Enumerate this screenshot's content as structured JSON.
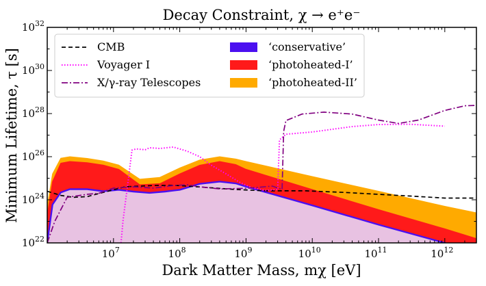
{
  "chart_data": {
    "type": "line",
    "title": "Decay Constraint,  χ → e⁺e⁻",
    "xlabel": "Dark Matter Mass, mχ [eV]",
    "ylabel": "Minimum Lifetime, τ [s]",
    "x_scale": "log",
    "y_scale": "log",
    "xlim": [
      1000000.0,
      3000000000000.0
    ],
    "ylim": [
      1e+22,
      1e+32
    ],
    "grid": false,
    "legend_position": "top-left",
    "x_ticks": [
      {
        "value": 10000000.0,
        "label": "10",
        "exp": "7"
      },
      {
        "value": 100000000.0,
        "label": "10",
        "exp": "8"
      },
      {
        "value": 1000000000.0,
        "label": "10",
        "exp": "9"
      },
      {
        "value": 10000000000.0,
        "label": "10",
        "exp": "10"
      },
      {
        "value": 100000000000.0,
        "label": "10",
        "exp": "11"
      },
      {
        "value": 1000000000000.0,
        "label": "10",
        "exp": "12"
      }
    ],
    "y_ticks": [
      {
        "value": 1e+22,
        "label": "10",
        "exp": "22"
      },
      {
        "value": 1e+24,
        "label": "10",
        "exp": "24"
      },
      {
        "value": 1e+26,
        "label": "10",
        "exp": "26"
      },
      {
        "value": 1e+28,
        "label": "10",
        "exp": "28"
      },
      {
        "value": 1e+30,
        "label": "10",
        "exp": "30"
      },
      {
        "value": 1e+32,
        "label": "10",
        "exp": "32"
      }
    ],
    "series": [
      {
        "name": "CMB",
        "style": "dashed",
        "color": "#000000",
        "x": [
          1000000.0,
          1600000.0,
          2500000.0,
          4000000.0,
          7000000.0,
          15000000.0,
          40000000.0,
          80000000.0,
          150000000.0,
          300000000.0,
          700000000.0,
          2000000000.0,
          8000000000.0,
          30000000000.0,
          100000000000.0,
          300000000000.0,
          1000000000000.0,
          3000000000000.0
        ],
        "y": [
          2.5e+24,
          1.6e+24,
          1.3e+24,
          1.4e+24,
          2.2e+24,
          4e+24,
          4.6e+24,
          4.7e+24,
          4.2e+24,
          3.6e+24,
          3e+24,
          2.6e+24,
          2.6e+24,
          2.2e+24,
          1.8e+24,
          1.5e+24,
          1.2e+24,
          1.2e+24
        ]
      },
      {
        "name": "Voyager I",
        "style": "dotted",
        "color": "#ff00ff",
        "x": [
          13000000.0,
          14000000.0,
          16000000.0,
          19000000.0,
          22000000.0,
          30000000.0,
          35000000.0,
          50000000.0,
          80000000.0,
          130000000.0,
          200000000.0,
          300000000.0,
          500000000.0,
          800000000.0,
          1200000000.0,
          2000000000.0,
          3000000000.0,
          3200000000.0,
          4000000000.0,
          10000000000.0,
          40000000000.0,
          100000000000.0,
          300000000000.0,
          1000000000000.0
        ],
        "y": [
          1e+22,
          1.2e+23,
          3e+24,
          2e+26,
          2.3e+26,
          2.1e+26,
          2.6e+26,
          2.4e+26,
          2.8e+26,
          1.8e+26,
          1e+26,
          4e+25,
          1.6e+25,
          6.5e+24,
          3.7e+24,
          2.7e+24,
          3e+24,
          6e+26,
          1.1e+27,
          1.4e+27,
          2.5e+27,
          3.1e+27,
          3.2e+27,
          2.6e+27
        ]
      },
      {
        "name": "X/γ-ray Telescopes",
        "style": "dashdot",
        "color": "#800080",
        "x": [
          1000000.0,
          1300000.0,
          2000000.0,
          4000000.0,
          6000000.0,
          10000000.0,
          20000000.0,
          40000000.0,
          80000000.0,
          130000000.0,
          200000000.0,
          400000000.0,
          1000000000.0,
          2500000000.0,
          3500000000.0,
          3700000000.0,
          4000000000.0,
          7000000000.0,
          15000000000.0,
          40000000000.0,
          100000000000.0,
          200000000000.0,
          400000000000.0,
          1000000000000.0,
          2000000000000.0,
          3000000000000.0
        ],
        "y": [
          1e+22,
          1e+23,
          1.3e+24,
          1.8e+24,
          2e+24,
          3.5e+24,
          4e+24,
          3.5e+24,
          4.6e+24,
          5e+24,
          4e+24,
          3.2e+24,
          3.4e+24,
          4.3e+24,
          3e+24,
          1.5e+27,
          4.7e+27,
          9.5e+27,
          1.17e+28,
          9.5e+27,
          5e+27,
          3.5e+27,
          5e+27,
          1.4e+28,
          2.3e+28,
          2.4e+28
        ]
      },
      {
        "name": "‘conservative’",
        "style": "band",
        "color": "#4b10f0",
        "fill": "#e8c2e2",
        "x": [
          1000000.0,
          1200000.0,
          1600000.0,
          2200000.0,
          4000000.0,
          7000000.0,
          12000000.0,
          20000000.0,
          35000000.0,
          60000000.0,
          100000000.0,
          200000000.0,
          400000000.0,
          700000000.0,
          1000000000.0,
          10000000000.0,
          100000000000.0,
          1000000000000.0,
          3000000000000.0
        ],
        "y": [
          1e+22,
          6e+23,
          2.2e+24,
          3.1e+24,
          3.1e+24,
          2.5e+24,
          2.9e+24,
          2.4e+24,
          2.1e+24,
          2.4e+24,
          2.9e+24,
          5.5e+24,
          7e+24,
          5.8e+24,
          4.1e+24,
          5.5e+23,
          7e+22,
          1e+22,
          4e+21
        ]
      },
      {
        "name": "‘photoheated-I’",
        "style": "band",
        "color": "#ff1a1a",
        "x": [
          1000000.0,
          1200000.0,
          1600000.0,
          2200000.0,
          4000000.0,
          7000000.0,
          12000000.0,
          25000000.0,
          50000000.0,
          100000000.0,
          200000000.0,
          400000000.0,
          700000000.0,
          1000000000.0,
          10000000000.0,
          100000000000.0,
          1000000000000.0,
          3000000000000.0
        ],
        "y": [
          2e+23,
          7e+24,
          5e+25,
          6e+25,
          5.3e+25,
          4.1e+25,
          2.6e+25,
          5e+24,
          5.6e+24,
          1.6e+25,
          4e+25,
          6e+25,
          4.3e+25,
          2.6e+25,
          3e+24,
          3.5e+23,
          4.5e+22,
          1.6e+22
        ]
      },
      {
        "name": "‘photoheated-II’",
        "style": "band",
        "color": "#ffaa00",
        "x": [
          1000000.0,
          1200000.0,
          1600000.0,
          2200000.0,
          4000000.0,
          7000000.0,
          12000000.0,
          25000000.0,
          50000000.0,
          100000000.0,
          200000000.0,
          400000000.0,
          700000000.0,
          1000000000.0,
          10000000000.0,
          100000000000.0,
          1000000000000.0,
          3000000000000.0
        ],
        "y": [
          5e+23,
          1.6e+25,
          8.5e+25,
          1e+26,
          8.3e+25,
          6.3e+25,
          4.1e+25,
          9e+24,
          1.1e+25,
          3e+25,
          7e+25,
          1e+26,
          7.8e+25,
          6e+25,
          1.2e+25,
          2.5e+24,
          5e+23,
          2.5e+23
        ]
      }
    ]
  }
}
